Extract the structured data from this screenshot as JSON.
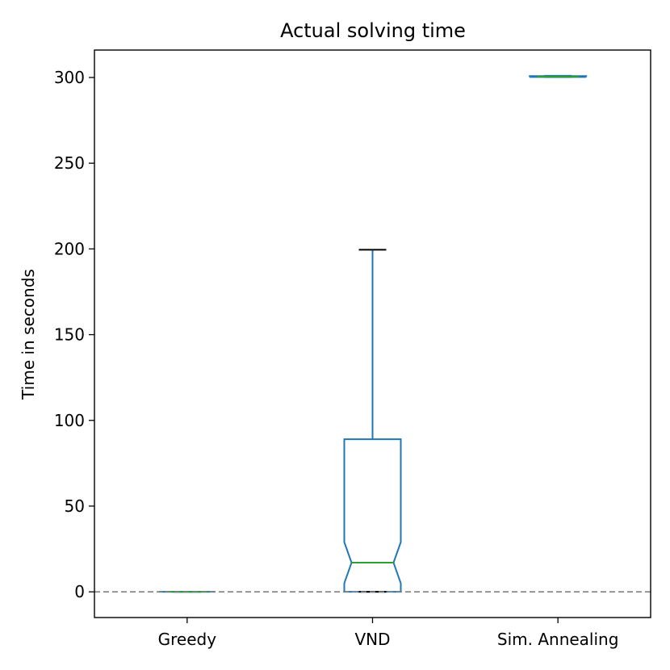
{
  "chart_data": {
    "type": "boxplot",
    "title": "Actual solving time",
    "xlabel": "",
    "ylabel": "Time in seconds",
    "ylim": [
      -15,
      316
    ],
    "yticks": [
      0,
      50,
      100,
      150,
      200,
      250,
      300
    ],
    "grid": false,
    "notched": true,
    "reference_line": {
      "y": 0,
      "style": "dashed",
      "color": "#808080"
    },
    "categories": [
      "Greedy",
      "VND",
      "Sim. Annealing"
    ],
    "boxes": [
      {
        "category": "Greedy",
        "whisker_low": 0,
        "q1": 0,
        "median": 0,
        "q3": 0,
        "whisker_high": 0,
        "notch_low": 0,
        "notch_high": 0
      },
      {
        "category": "VND",
        "whisker_low": 0,
        "q1": 0,
        "median": 17,
        "q3": 89,
        "whisker_high": 199.5,
        "notch_low": 5,
        "notch_high": 29
      },
      {
        "category": "Sim. Annealing",
        "whisker_low": 300.2,
        "q1": 300.3,
        "median": 300.5,
        "q3": 300.8,
        "whisker_high": 301,
        "notch_low": 300.3,
        "notch_high": 300.7
      }
    ],
    "colors": {
      "box": "#1f77b4",
      "median": "#2ca02c",
      "cap": "#000000",
      "zero_line": "#808080"
    }
  }
}
